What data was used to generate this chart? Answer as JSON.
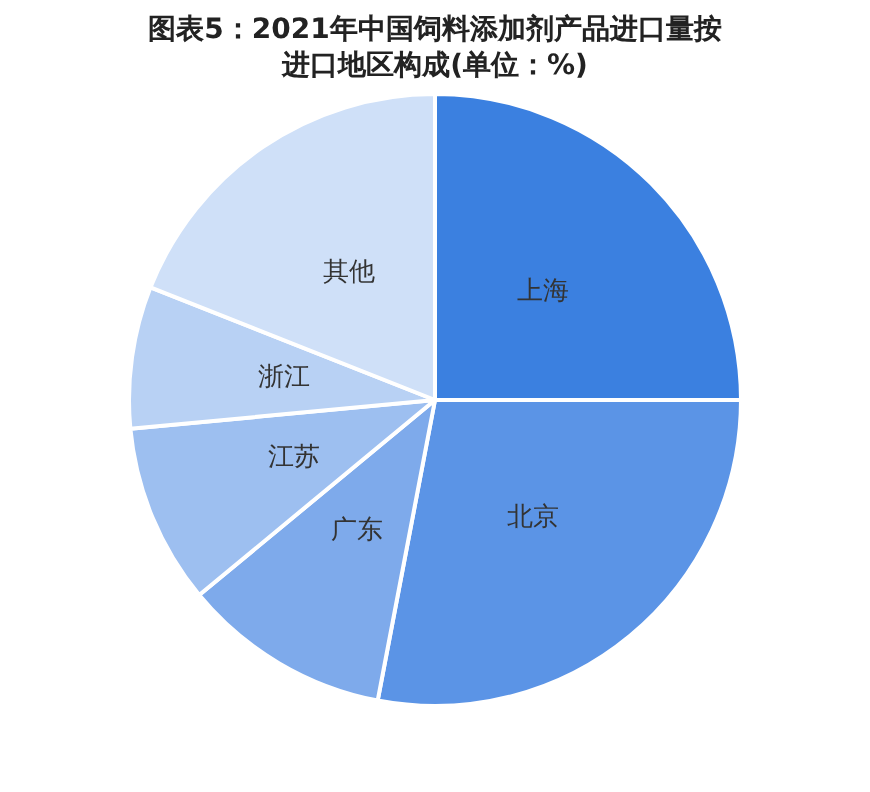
{
  "chart_data": {
    "type": "pie",
    "title": "图表5：2021年中国饲料添加剂产品进口量按进口地区构成(单位：%)",
    "categories": [
      "上海",
      "北京",
      "广东",
      "江苏",
      "浙江",
      "其他"
    ],
    "values": [
      25,
      28,
      11,
      9.5,
      7.5,
      19
    ],
    "colors": [
      "#3b80e0",
      "#5b94e6",
      "#7eaaeb",
      "#9dbff0",
      "#b8d1f4",
      "#cfe0f8"
    ],
    "legend": false
  }
}
